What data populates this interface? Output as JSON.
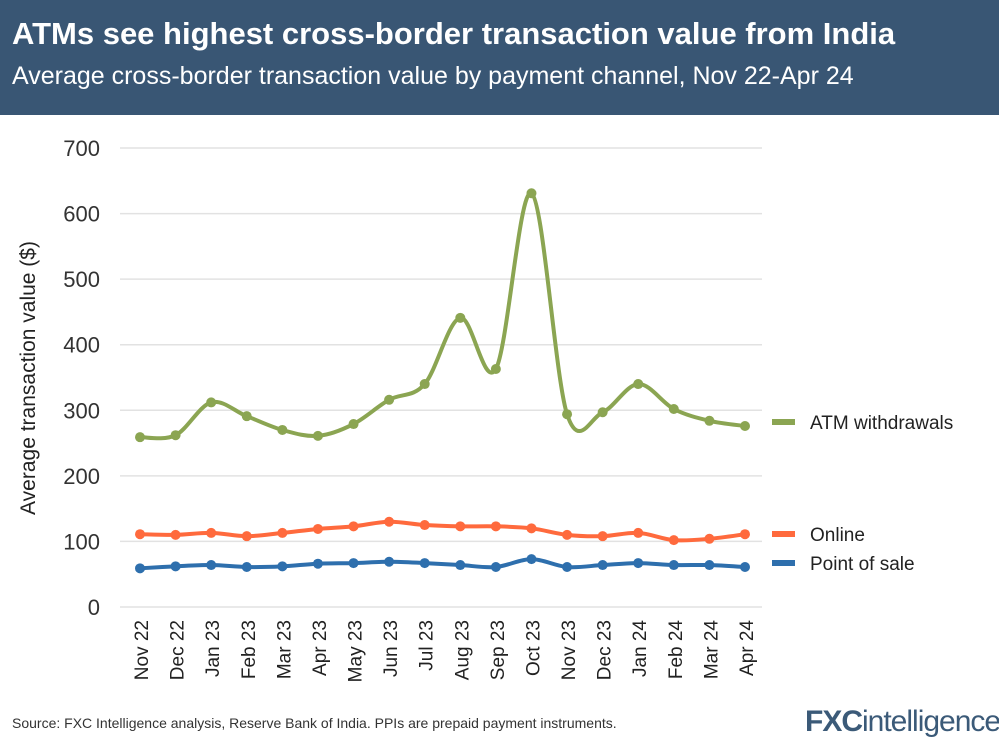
{
  "header": {
    "title": "ATMs see highest cross-border transaction value from India",
    "subtitle": "Average cross-border transaction value by payment channel, Nov 22-Apr 24"
  },
  "footer": {
    "source": "Source: FXC Intelligence analysis, Reserve Bank of India. PPIs are prepaid payment instruments.",
    "logo": "FXCintelligence"
  },
  "chart_data": {
    "type": "line",
    "ylabel": "Average transaction value ($)",
    "ylim": [
      0,
      700
    ],
    "yticks": [
      0,
      100,
      200,
      300,
      400,
      500,
      600,
      700
    ],
    "grid": true,
    "legend": "right (end-of-line labels)",
    "categories": [
      "Nov 22",
      "Dec 22",
      "Jan 23",
      "Feb 23",
      "Mar 23",
      "Apr 23",
      "May 23",
      "Jun 23",
      "Jul 23",
      "Aug 23",
      "Sep 23",
      "Oct 23",
      "Nov 23",
      "Dec 23",
      "Jan 24",
      "Feb 24",
      "Mar 24",
      "Apr 24"
    ],
    "series": [
      {
        "name": "ATM withdrawals",
        "color": "#8ba552",
        "values": [
          259,
          262,
          312,
          291,
          270,
          261,
          279,
          316,
          340,
          441,
          363,
          631,
          294,
          297,
          340,
          302,
          284,
          276
        ]
      },
      {
        "name": "Online",
        "color": "#ff6a3d",
        "values": [
          111,
          110,
          113,
          108,
          113,
          119,
          123,
          130,
          125,
          123,
          123,
          120,
          110,
          108,
          113,
          102,
          104,
          111
        ]
      },
      {
        "name": "Point of sale",
        "color": "#2e6fad",
        "values": [
          59,
          62,
          64,
          61,
          62,
          66,
          67,
          69,
          67,
          64,
          61,
          73,
          61,
          64,
          67,
          64,
          64,
          61
        ]
      }
    ]
  }
}
